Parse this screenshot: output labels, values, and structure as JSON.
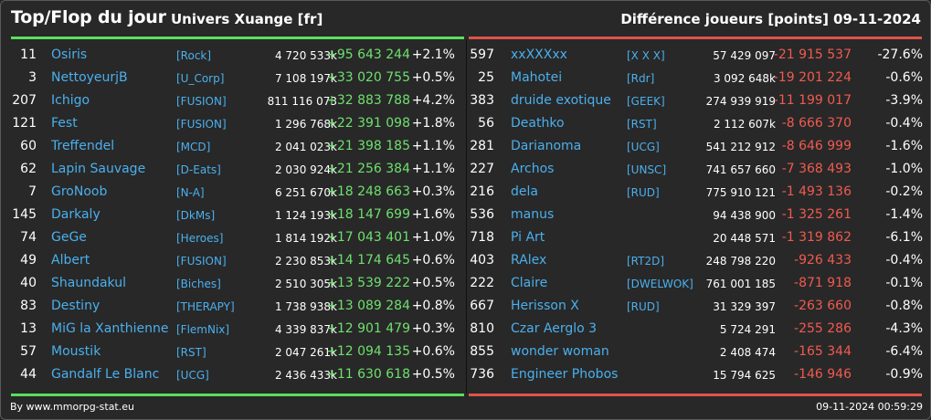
{
  "header": {
    "title": "Top/Flop du jour",
    "universe": "Univers Xuange [fr]",
    "metric": "Différence joueurs [points]",
    "date": "09-11-2024"
  },
  "colors": {
    "top": "#5bdf5b",
    "flop": "#e0524a",
    "link": "#4ab0ee"
  },
  "top": [
    {
      "rank": "11",
      "name": "Osiris",
      "guild": "[Rock]",
      "points": "4 720 533k",
      "diff": "+95 643 244",
      "pct": "+2.1%"
    },
    {
      "rank": "3",
      "name": "NettoyeurjB",
      "guild": "[U_Corp]",
      "points": "7 108 197k",
      "diff": "+33 020 755",
      "pct": "+0.5%"
    },
    {
      "rank": "207",
      "name": "Ichigo",
      "guild": "[FUSION]",
      "points": "811 116 073",
      "diff": "+32 883 788",
      "pct": "+4.2%"
    },
    {
      "rank": "121",
      "name": "Fest",
      "guild": "[FUSION]",
      "points": "1 296 768k",
      "diff": "+22 391 098",
      "pct": "+1.8%"
    },
    {
      "rank": "60",
      "name": "Treffendel",
      "guild": "[MCD]",
      "points": "2 041 023k",
      "diff": "+21 398 185",
      "pct": "+1.1%"
    },
    {
      "rank": "62",
      "name": "Lapin Sauvage",
      "guild": "[D-Eats]",
      "points": "2 030 924k",
      "diff": "+21 256 384",
      "pct": "+1.1%"
    },
    {
      "rank": "7",
      "name": "GroNoob",
      "guild": "[N-A]",
      "points": "6 251 670k",
      "diff": "+18 248 663",
      "pct": "+0.3%"
    },
    {
      "rank": "145",
      "name": "Darkaly",
      "guild": "[DkMs]",
      "points": "1 124 193k",
      "diff": "+18 147 699",
      "pct": "+1.6%"
    },
    {
      "rank": "74",
      "name": "GeGe",
      "guild": "[Heroes]",
      "points": "1 814 192k",
      "diff": "+17 043 401",
      "pct": "+1.0%"
    },
    {
      "rank": "49",
      "name": "Albert",
      "guild": "[FUSION]",
      "points": "2 230 853k",
      "diff": "+14 174 645",
      "pct": "+0.6%"
    },
    {
      "rank": "40",
      "name": "Shaundakul",
      "guild": "[Biches]",
      "points": "2 510 305k",
      "diff": "+13 539 222",
      "pct": "+0.5%"
    },
    {
      "rank": "83",
      "name": "Destiny",
      "guild": "[THERAPY]",
      "points": "1 738 938k",
      "diff": "+13 089 284",
      "pct": "+0.8%"
    },
    {
      "rank": "13",
      "name": "MiG la Xanthienne",
      "guild": "[FlemNix]",
      "points": "4 339 837k",
      "diff": "+12 901 479",
      "pct": "+0.3%"
    },
    {
      "rank": "57",
      "name": "Moustik",
      "guild": "[RST]",
      "points": "2 047 261k",
      "diff": "+12 094 135",
      "pct": "+0.6%"
    },
    {
      "rank": "44",
      "name": "Gandalf Le Blanc",
      "guild": "[UCG]",
      "points": "2 436 433k",
      "diff": "+11 630 618",
      "pct": "+0.5%"
    }
  ],
  "flop": [
    {
      "rank": "597",
      "name": "xxXXXxx",
      "guild": "[X X X]",
      "points": "57 429 097",
      "diff": "-21 915 537",
      "pct": "-27.6%"
    },
    {
      "rank": "25",
      "name": "Mahotei",
      "guild": "[Rdr]",
      "points": "3 092 648k",
      "diff": "-19 201 224",
      "pct": "-0.6%"
    },
    {
      "rank": "383",
      "name": "druide exotique",
      "guild": "[GEEK]",
      "points": "274 939 919",
      "diff": "-11 199 017",
      "pct": "-3.9%"
    },
    {
      "rank": "56",
      "name": "Deathko",
      "guild": "[RST]",
      "points": "2 112 607k",
      "diff": "-8 666 370",
      "pct": "-0.4%"
    },
    {
      "rank": "281",
      "name": "Darianoma",
      "guild": "[UCG]",
      "points": "541 212 912",
      "diff": "-8 646 999",
      "pct": "-1.6%"
    },
    {
      "rank": "227",
      "name": "Archos",
      "guild": "[UNSC]",
      "points": "741 657 660",
      "diff": "-7 368 493",
      "pct": "-1.0%"
    },
    {
      "rank": "216",
      "name": "dela",
      "guild": "[RUD]",
      "points": "775 910 121",
      "diff": "-1 493 136",
      "pct": "-0.2%"
    },
    {
      "rank": "536",
      "name": "manus",
      "guild": "",
      "points": "94 438 900",
      "diff": "-1 325 261",
      "pct": "-1.4%"
    },
    {
      "rank": "718",
      "name": "Pi Art",
      "guild": "",
      "points": "20 448 571",
      "diff": "-1 319 862",
      "pct": "-6.1%"
    },
    {
      "rank": "403",
      "name": "RAlex",
      "guild": "[RT2D]",
      "points": "248 798 220",
      "diff": "-926 433",
      "pct": "-0.4%"
    },
    {
      "rank": "222",
      "name": "Claire",
      "guild": "[DWELWOK]",
      "points": "761 001 185",
      "diff": "-871 918",
      "pct": "-0.1%"
    },
    {
      "rank": "667",
      "name": "Herisson X",
      "guild": "[RUD]",
      "points": "31 329 397",
      "diff": "-263 660",
      "pct": "-0.8%"
    },
    {
      "rank": "810",
      "name": "Czar Aerglo 3",
      "guild": "",
      "points": "5 724 291",
      "diff": "-255 286",
      "pct": "-4.3%"
    },
    {
      "rank": "855",
      "name": "wonder woman",
      "guild": "",
      "points": "2 408 474",
      "diff": "-165 344",
      "pct": "-6.4%"
    },
    {
      "rank": "736",
      "name": "Engineer Phobos",
      "guild": "",
      "points": "15 794 625",
      "diff": "-146 946",
      "pct": "-0.9%"
    }
  ],
  "footer": {
    "source": "By www.mmorpg-stat.eu",
    "timestamp": "09-11-2024 00:59:29"
  }
}
